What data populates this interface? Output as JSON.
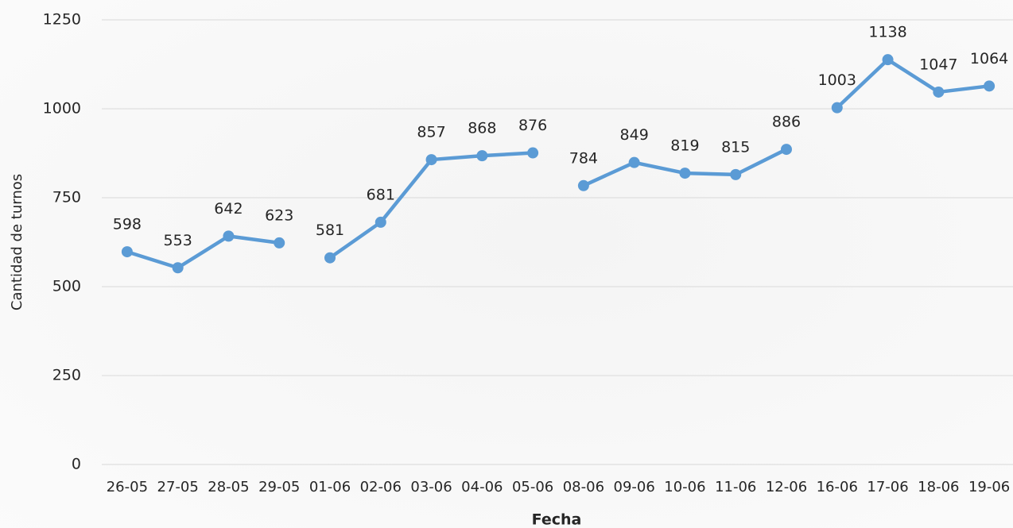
{
  "chart_data": {
    "type": "line",
    "x_label": "Fecha",
    "y_label": "Cantidad de turnos",
    "categories": [
      "26-05",
      "27-05",
      "28-05",
      "29-05",
      "01-06",
      "02-06",
      "03-06",
      "04-06",
      "05-06",
      "08-06",
      "09-06",
      "10-06",
      "11-06",
      "12-06",
      "16-06",
      "17-06",
      "18-06",
      "19-06"
    ],
    "series": [
      {
        "color": "#5b9bd5",
        "values": [
          598,
          553,
          642,
          623,
          null,
          null,
          null,
          null,
          null,
          null,
          null,
          null,
          null,
          null,
          null,
          null,
          null,
          null
        ]
      },
      {
        "color": "#5b9bd5",
        "values": [
          null,
          null,
          null,
          null,
          581,
          681,
          857,
          868,
          876,
          null,
          null,
          null,
          null,
          null,
          null,
          null,
          null,
          null
        ]
      },
      {
        "color": "#5b9bd5",
        "values": [
          null,
          null,
          null,
          null,
          null,
          null,
          null,
          null,
          null,
          784,
          849,
          819,
          815,
          886,
          null,
          null,
          null,
          null
        ]
      },
      {
        "color": "#5b9bd5",
        "values": [
          null,
          null,
          null,
          null,
          null,
          null,
          null,
          null,
          null,
          null,
          null,
          null,
          null,
          null,
          1003,
          1138,
          1047,
          1064
        ]
      }
    ],
    "ylim": [
      0,
      1250
    ],
    "yticks": [
      0,
      250,
      500,
      750,
      1000,
      1250
    ],
    "grid": true
  }
}
